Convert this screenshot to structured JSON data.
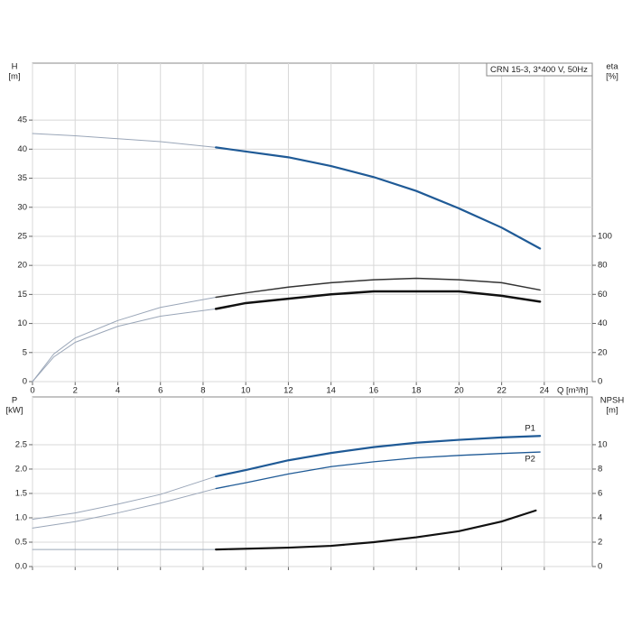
{
  "chart_data": [
    {
      "type": "line",
      "title": "CRN 15-3, 3*400 V, 50Hz",
      "ylabel": "H",
      "yunit": "[m]",
      "y2label": "eta",
      "y2unit": "[%]",
      "xlabel": "Q [m³/h]",
      "xlim": [
        0,
        26.25
      ],
      "xticks": [
        0,
        2,
        4,
        6,
        8,
        10,
        12,
        14,
        16,
        18,
        20,
        22,
        24
      ],
      "xtick_labels": true,
      "ylim": [
        0,
        54.8
      ],
      "yticks": [
        0,
        5,
        10,
        15,
        20,
        25,
        30,
        35,
        40,
        45
      ],
      "y2lim": [
        0,
        219
      ],
      "y2ticks": [
        0,
        20,
        40,
        60,
        80,
        100
      ],
      "grid": true,
      "series": [
        {
          "color": "#9aa6b8",
          "width": 1,
          "x": [
            0,
            2,
            4,
            6,
            8.6
          ],
          "values": [
            42.7,
            42.3,
            41.8,
            41.3,
            40.3
          ]
        },
        {
          "color": "#1f5a96",
          "width": 2.2,
          "x": [
            8.6,
            10,
            12,
            14,
            16,
            18,
            20,
            22,
            23.8
          ],
          "values": [
            40.3,
            39.6,
            38.6,
            37.1,
            35.2,
            32.8,
            29.8,
            26.5,
            22.9
          ]
        },
        {
          "color": "#9aa6b8",
          "width": 1,
          "axis": "y2",
          "x": [
            0,
            1,
            2,
            4,
            6,
            8.6
          ],
          "values": [
            0,
            19,
            30,
            42,
            51,
            58
          ]
        },
        {
          "color": "#333333",
          "width": 1.5,
          "axis": "y2",
          "x": [
            8.6,
            10,
            12,
            14,
            16,
            18,
            20,
            22,
            23.8
          ],
          "values": [
            58,
            61,
            65,
            68,
            70,
            71,
            70,
            68,
            63
          ]
        },
        {
          "color": "#9aa6b8",
          "width": 1,
          "axis": "y2",
          "x": [
            0,
            1,
            2,
            4,
            6,
            8.6
          ],
          "values": [
            0,
            17,
            27,
            38,
            45,
            50
          ]
        },
        {
          "color": "#111111",
          "width": 2.5,
          "axis": "y2",
          "x": [
            8.6,
            10,
            12,
            14,
            16,
            18,
            20,
            22,
            23.8
          ],
          "values": [
            50,
            54,
            57,
            60,
            62,
            62,
            62,
            59,
            55
          ]
        }
      ]
    },
    {
      "type": "line",
      "ylabel": "P",
      "yunit": "[kW]",
      "y2label": "NPSH",
      "y2unit": "[m]",
      "xlim": [
        0,
        26.25
      ],
      "xticks": [
        0,
        2,
        4,
        6,
        8,
        10,
        12,
        14,
        16,
        18,
        20,
        22,
        24
      ],
      "xtick_labels": false,
      "ylim": [
        0,
        3.48
      ],
      "yticks": [
        {
          "value": 0,
          "label": "0.0"
        },
        0.5,
        {
          "value": 1,
          "label": "1.0"
        },
        1.5,
        {
          "value": 2,
          "label": "2.0"
        },
        2.5
      ],
      "y2lim": [
        0,
        13.92
      ],
      "y2ticks": [
        0,
        2,
        4,
        6,
        8,
        10
      ],
      "grid": true,
      "series": [
        {
          "color": "#9aa6b8",
          "width": 1,
          "x": [
            0,
            2,
            4,
            6,
            8.6
          ],
          "values": [
            0.97,
            1.1,
            1.28,
            1.48,
            1.85
          ]
        },
        {
          "name": "P1",
          "color": "#1f5a96",
          "width": 2.2,
          "x": [
            8.6,
            10,
            12,
            14,
            16,
            18,
            20,
            22,
            23.8
          ],
          "values": [
            1.85,
            1.98,
            2.18,
            2.33,
            2.45,
            2.54,
            2.6,
            2.65,
            2.68
          ]
        },
        {
          "color": "#9aa6b8",
          "width": 1,
          "x": [
            0,
            2,
            4,
            6,
            8.6
          ],
          "values": [
            0.79,
            0.92,
            1.1,
            1.3,
            1.6
          ]
        },
        {
          "name": "P2",
          "color": "#1f5a96",
          "width": 1.3,
          "x": [
            8.6,
            10,
            12,
            14,
            16,
            18,
            20,
            22,
            23.8
          ],
          "values": [
            1.6,
            1.72,
            1.9,
            2.05,
            2.15,
            2.23,
            2.28,
            2.32,
            2.35
          ]
        },
        {
          "color": "#9aa6b8",
          "width": 1,
          "axis": "y2",
          "x": [
            0,
            4,
            8.6
          ],
          "values": [
            1.4,
            1.4,
            1.4
          ]
        },
        {
          "color": "#111111",
          "width": 2.2,
          "axis": "y2",
          "x": [
            8.6,
            12,
            14,
            16,
            18,
            20,
            22,
            23.6
          ],
          "values": [
            1.4,
            1.55,
            1.7,
            2.0,
            2.4,
            2.9,
            3.7,
            4.6
          ]
        }
      ]
    }
  ]
}
